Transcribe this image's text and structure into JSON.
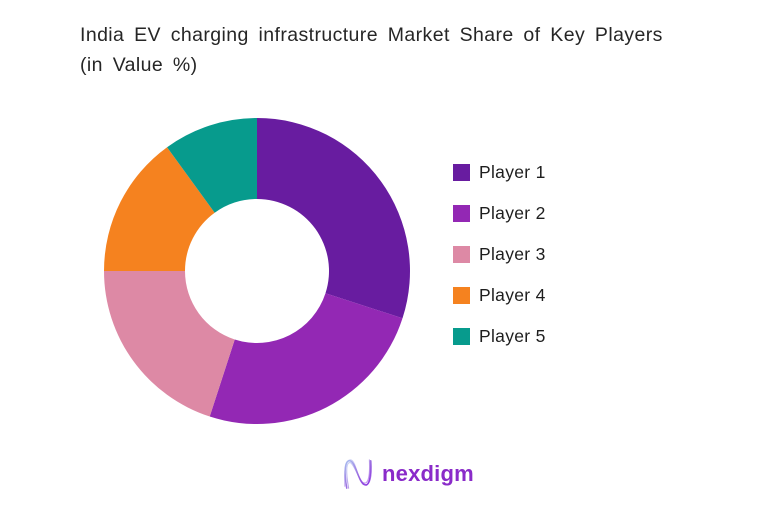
{
  "chart_data": {
    "type": "pie",
    "subtype": "donut",
    "title": "India EV charging infrastructure Market Share of Key Players (in Value %)",
    "legend": [
      "Player 1",
      "Player 2",
      "Player 3",
      "Player 4",
      "Player 5"
    ],
    "values": [
      30,
      25,
      20,
      15,
      10
    ],
    "unit": "%",
    "colors": [
      "#681ca0",
      "#9328b4",
      "#dd89a5",
      "#f5821f",
      "#079b8d"
    ],
    "start_angle": 0,
    "direction": "clockwise",
    "inner_radius_ratio": 0.47,
    "legend_position": "right",
    "grid": false
  },
  "footer": {
    "brand": "nexdigm"
  }
}
